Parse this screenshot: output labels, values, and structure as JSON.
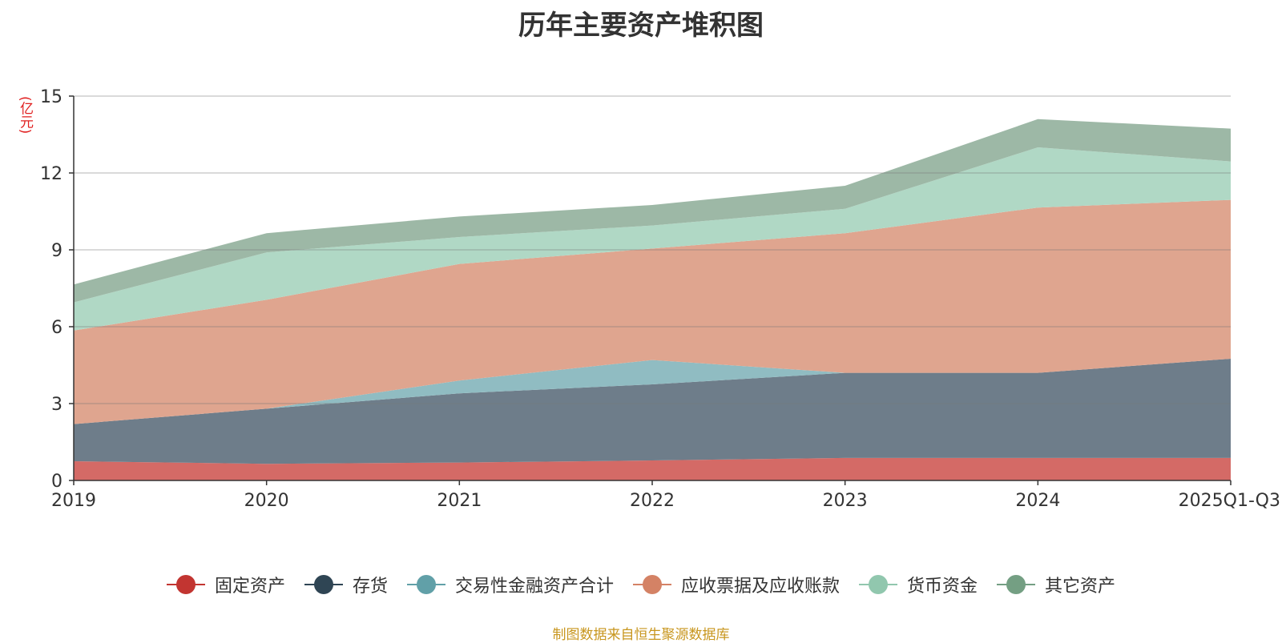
{
  "chart_data": {
    "type": "area",
    "stacked": true,
    "title": "历年主要资产堆积图",
    "ylabel": "(亿元)",
    "xlabel": "",
    "categories": [
      "2019",
      "2020",
      "2021",
      "2022",
      "2023",
      "2024",
      "2025Q1-Q3"
    ],
    "ylim": [
      0,
      15
    ],
    "yticks": [
      0,
      3,
      6,
      9,
      12,
      15
    ],
    "grid": true,
    "legend_position": "bottom",
    "series": [
      {
        "name": "固定资产",
        "color": "#c23531",
        "fill": "#d46a66",
        "values": [
          0.75,
          0.65,
          0.7,
          0.78,
          0.88,
          0.88,
          0.88
        ]
      },
      {
        "name": "存货",
        "color": "#2f4554",
        "fill": "#6e7d8a",
        "values": [
          1.45,
          2.15,
          2.7,
          2.97,
          3.32,
          3.32,
          3.87
        ]
      },
      {
        "name": "交易性金融资产合计",
        "color": "#61a0a8",
        "fill": "#90bcc2",
        "values": [
          0.0,
          0.0,
          0.5,
          0.95,
          0.0,
          0.0,
          0.0
        ]
      },
      {
        "name": "应收票据及应收账款",
        "color": "#d48265",
        "fill": "#dfa58f",
        "values": [
          3.65,
          4.25,
          4.55,
          4.35,
          5.45,
          6.45,
          6.2
        ]
      },
      {
        "name": "货币资金",
        "color": "#91c7ae",
        "fill": "#b0d8c5",
        "values": [
          1.1,
          1.85,
          1.05,
          0.9,
          0.95,
          2.35,
          1.5
        ]
      },
      {
        "name": "其它资产",
        "color": "#749f83",
        "fill": "#9db8a6",
        "values": [
          0.7,
          0.75,
          0.8,
          0.8,
          0.9,
          1.1,
          1.28
        ]
      }
    ]
  },
  "source": "制图数据来自恒生聚源数据库"
}
